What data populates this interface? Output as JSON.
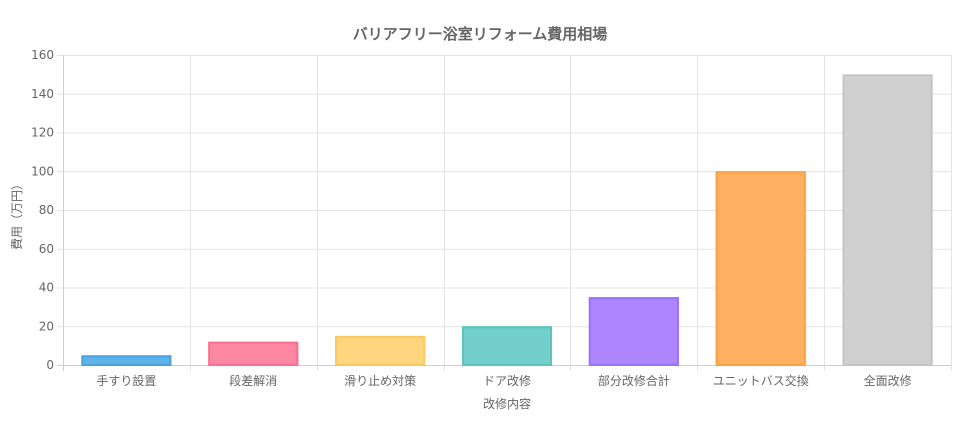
{
  "chart_data": {
    "type": "bar",
    "title": "バリアフリー浴室リフォーム費用相場",
    "xlabel": "改修内容",
    "ylabel": "費用（万円）",
    "categories": [
      "手すり設置",
      "段差解消",
      "滑り止め対策",
      "ドア改修",
      "部分改修合計",
      "ユニットバス交換",
      "全面改修"
    ],
    "values": [
      5,
      12,
      15,
      20,
      35,
      100,
      150
    ],
    "ylim": [
      0,
      160
    ],
    "yticks": [
      0,
      20,
      40,
      60,
      80,
      100,
      120,
      140,
      160
    ],
    "grid": true,
    "legend": "none",
    "colors": {
      "fills": [
        "#5fb2ea",
        "#fe87a1",
        "#ffd57e",
        "#73cfcc",
        "#ad85ff",
        "#ffb060",
        "#d0d0d0"
      ],
      "borders": [
        "#4aa3e0",
        "#f8708f",
        "#fdc860",
        "#5ec2bf",
        "#9d70ff",
        "#ff9f40",
        "#c4c4c4"
      ],
      "grid": "#e4e4e4",
      "axis": "#cfcfcf",
      "text": "#666666",
      "title": "#666666"
    }
  }
}
